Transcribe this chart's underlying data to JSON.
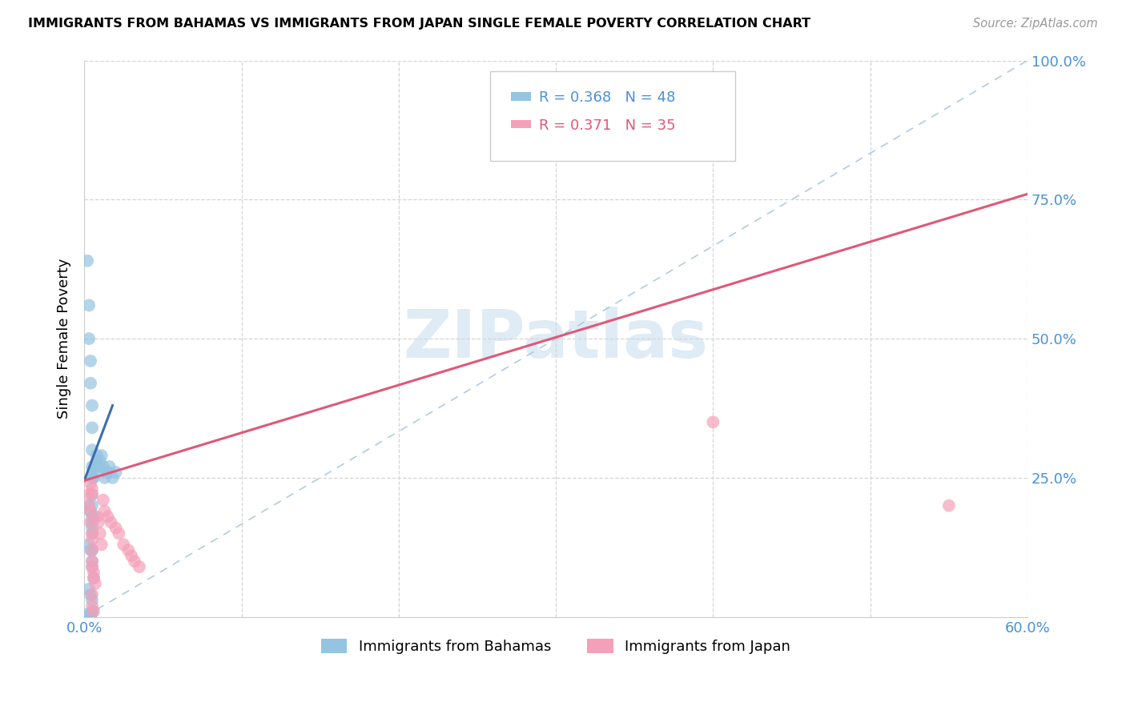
{
  "title": "IMMIGRANTS FROM BAHAMAS VS IMMIGRANTS FROM JAPAN SINGLE FEMALE POVERTY CORRELATION CHART",
  "source": "Source: ZipAtlas.com",
  "ylabel": "Single Female Poverty",
  "xlim": [
    0.0,
    0.6
  ],
  "ylim": [
    0.0,
    1.0
  ],
  "xticks": [
    0.0,
    0.1,
    0.2,
    0.3,
    0.4,
    0.5,
    0.6
  ],
  "xticklabels": [
    "0.0%",
    "",
    "",
    "",
    "",
    "",
    "60.0%"
  ],
  "yticks_right": [
    0.25,
    0.5,
    0.75,
    1.0
  ],
  "yticklabels_right": [
    "25.0%",
    "50.0%",
    "75.0%",
    "100.0%"
  ],
  "legend1_label": "Immigrants from Bahamas",
  "legend2_label": "Immigrants from Japan",
  "r1": "0.368",
  "n1": "48",
  "r2": "0.371",
  "n2": "35",
  "color_blue": "#94c4e1",
  "color_pink": "#f4a0b8",
  "color_blue_line": "#3a6faf",
  "color_pink_line": "#e05878",
  "color_diag": "#b0cce0",
  "watermark": "ZIPatlas",
  "bahamas_x": [
    0.002,
    0.003,
    0.003,
    0.004,
    0.004,
    0.005,
    0.005,
    0.005,
    0.005,
    0.005,
    0.005,
    0.005,
    0.005,
    0.005,
    0.005,
    0.006,
    0.006,
    0.007,
    0.008,
    0.008,
    0.009,
    0.01,
    0.011,
    0.012,
    0.013,
    0.014,
    0.015,
    0.016,
    0.018,
    0.02,
    0.003,
    0.004,
    0.005,
    0.005,
    0.006,
    0.003,
    0.004,
    0.005,
    0.005,
    0.006,
    0.003,
    0.004,
    0.005,
    0.005,
    0.002,
    0.003,
    0.004,
    0.005
  ],
  "bahamas_y": [
    0.64,
    0.56,
    0.5,
    0.46,
    0.42,
    0.38,
    0.34,
    0.3,
    0.27,
    0.25,
    0.22,
    0.2,
    0.18,
    0.15,
    0.12,
    0.25,
    0.26,
    0.27,
    0.28,
    0.29,
    0.27,
    0.28,
    0.29,
    0.27,
    0.25,
    0.26,
    0.26,
    0.27,
    0.25,
    0.26,
    0.2,
    0.19,
    0.17,
    0.16,
    0.18,
    0.13,
    0.12,
    0.1,
    0.09,
    0.07,
    0.05,
    0.04,
    0.03,
    0.01,
    0.005,
    0.002,
    0.001,
    0.008
  ],
  "japan_x": [
    0.003,
    0.003,
    0.004,
    0.004,
    0.005,
    0.005,
    0.005,
    0.005,
    0.005,
    0.006,
    0.006,
    0.007,
    0.008,
    0.009,
    0.01,
    0.011,
    0.012,
    0.013,
    0.015,
    0.017,
    0.02,
    0.022,
    0.025,
    0.028,
    0.03,
    0.032,
    0.035,
    0.004,
    0.005,
    0.005,
    0.005,
    0.4,
    0.55,
    0.005,
    0.006
  ],
  "japan_y": [
    0.22,
    0.2,
    0.19,
    0.17,
    0.15,
    0.14,
    0.12,
    0.1,
    0.09,
    0.08,
    0.07,
    0.06,
    0.18,
    0.17,
    0.15,
    0.13,
    0.21,
    0.19,
    0.18,
    0.17,
    0.16,
    0.15,
    0.13,
    0.12,
    0.11,
    0.1,
    0.09,
    0.24,
    0.23,
    0.22,
    0.04,
    0.35,
    0.2,
    0.02,
    0.01
  ],
  "blue_line_x": [
    0.0,
    0.018
  ],
  "blue_line_y": [
    0.245,
    0.38
  ],
  "pink_line_x": [
    0.0,
    0.6
  ],
  "pink_line_y": [
    0.245,
    0.76
  ]
}
